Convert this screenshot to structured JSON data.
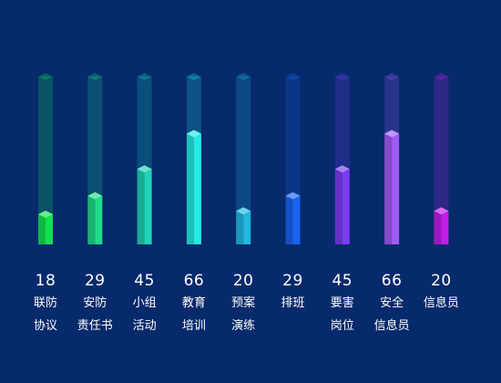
{
  "chart_data": {
    "type": "bar",
    "title": "",
    "xlabel": "",
    "ylabel": "",
    "ylim": [
      0,
      100
    ],
    "grid": false,
    "legend": "none",
    "categories": [
      "联防\n协议",
      "安防\n责任书",
      "小组\n活动",
      "教育\n培训",
      "预案\n演练",
      "排班",
      "要害\n岗位",
      "安全\n信息员",
      "信息员"
    ],
    "value_labels": [
      "18",
      "29",
      "45",
      "66",
      "20",
      "29",
      "45",
      "66",
      "20"
    ],
    "values": [
      18,
      29,
      45,
      66,
      20,
      29,
      45,
      66,
      20
    ],
    "colors": [
      "#12e24f",
      "#21da8a",
      "#1fd3b6",
      "#27e8e4",
      "#22b8e0",
      "#1a63f0",
      "#7a3cf0",
      "#a05bf5",
      "#c01ee8"
    ],
    "background": "#062a6b"
  }
}
